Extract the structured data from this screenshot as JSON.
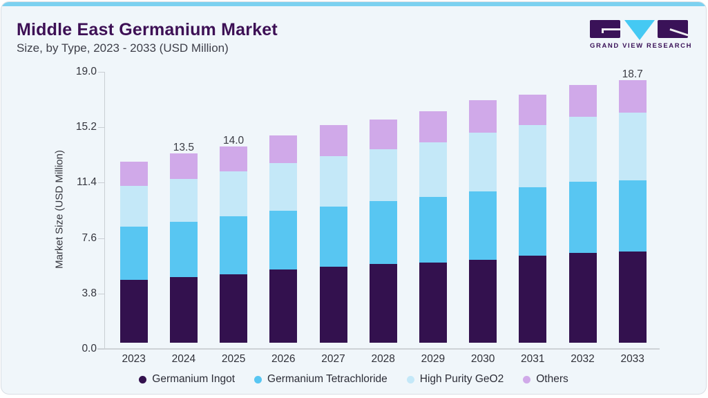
{
  "header": {
    "title": "Middle East Germanium Market",
    "subtitle": "Size, by Type, 2023 - 2033 (USD Million)"
  },
  "logo": {
    "text": "GRAND VIEW RESEARCH",
    "block_color": "#3a1258",
    "triangle_color": "#45c9f3"
  },
  "chart_data": {
    "type": "bar",
    "stacked": true,
    "title": "Middle East Germanium Market Size, by Type, 2023 - 2033 (USD Million)",
    "categories": [
      "2023",
      "2024",
      "2025",
      "2026",
      "2027",
      "2028",
      "2029",
      "2030",
      "2031",
      "2032",
      "2033"
    ],
    "series": [
      {
        "name": "Germanium Ingot",
        "color": "#33114e",
        "values": [
          4.5,
          4.7,
          4.9,
          5.2,
          5.4,
          5.6,
          5.7,
          5.9,
          6.2,
          6.4,
          6.5
        ]
      },
      {
        "name": "Germanium Tetrachloride",
        "color": "#58c6f2",
        "values": [
          3.8,
          3.9,
          4.1,
          4.2,
          4.3,
          4.5,
          4.7,
          4.9,
          4.9,
          5.1,
          5.1
        ]
      },
      {
        "name": "High Purity GeO2",
        "color": "#c4e8f8",
        "values": [
          2.9,
          3.1,
          3.2,
          3.4,
          3.6,
          3.7,
          3.9,
          4.2,
          4.4,
          4.6,
          4.8
        ]
      },
      {
        "name": "Others",
        "color": "#d0a9e9",
        "values": [
          1.7,
          1.8,
          1.8,
          2.0,
          2.2,
          2.1,
          2.2,
          2.3,
          2.2,
          2.3,
          2.3
        ]
      }
    ],
    "totals_labeled": {
      "2024": "13.5",
      "2025": "14.0",
      "2033": "18.7"
    },
    "ylabel": "Market Size (USD Million)",
    "yticks": [
      "19.0",
      "15.2",
      "11.4",
      "7.6",
      "3.8",
      "0.0"
    ],
    "ylim": [
      0.0,
      19.0
    ],
    "legend_position": "bottom",
    "grid": false
  },
  "colors": {
    "card_background": "#f0f6fa",
    "top_strip": "#7cd1f0",
    "title": "#3d1055",
    "subtitle": "#3e3f49",
    "axis_line": "#c9ced3",
    "axis_text": "#33343c"
  }
}
